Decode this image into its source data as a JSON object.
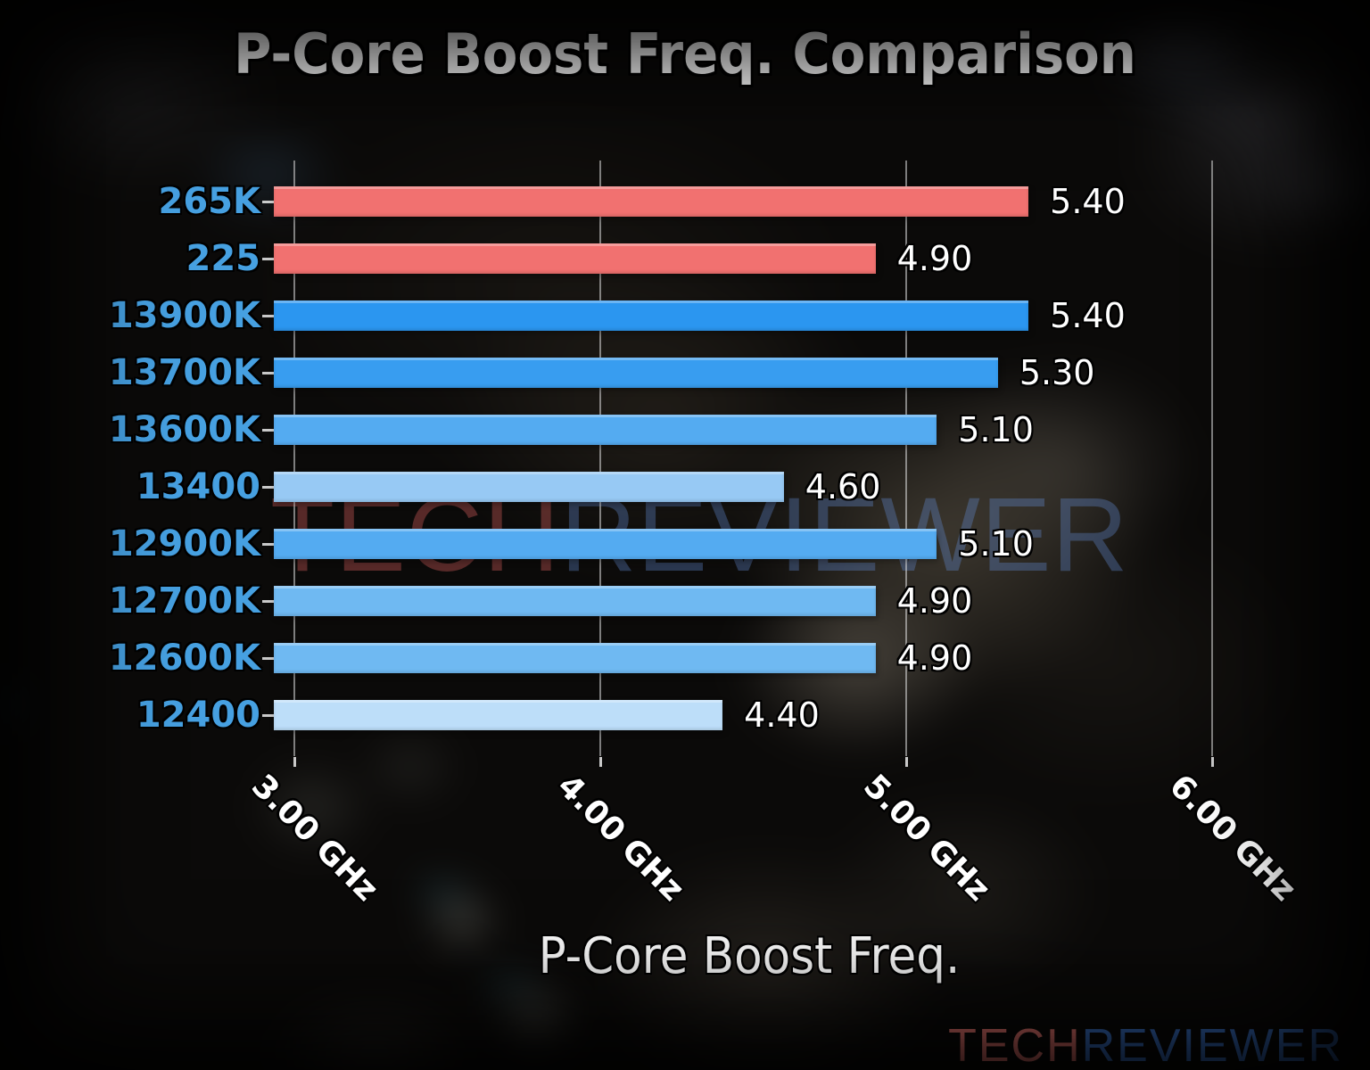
{
  "chart_data": {
    "type": "bar",
    "orientation": "horizontal",
    "title": "P-Core Boost Freq. Comparison",
    "xlabel": "P-Core Boost Freq.",
    "unit": "GHz",
    "categories": [
      "265K",
      "225",
      "13900K",
      "13700K",
      "13600K",
      "13400",
      "12900K",
      "12700K",
      "12600K",
      "12400"
    ],
    "values": [
      5.4,
      4.9,
      5.4,
      5.3,
      5.1,
      4.6,
      5.1,
      4.9,
      4.9,
      4.4
    ],
    "bar_colors": [
      "#f17170",
      "#f17170",
      "#2b96f0",
      "#389df0",
      "#54abf1",
      "#97c9f4",
      "#54abf1",
      "#6fb9f2",
      "#6fb9f2",
      "#bddef9"
    ],
    "category_label_color": "#46a0e1",
    "value_text_color": "#ffffff",
    "tick_text_color": "#ffffff",
    "x_ticks": [
      3,
      4,
      5,
      6
    ],
    "x_tick_labels": [
      "3.00 GHz",
      "4.00 GHz",
      "5.00 GHz",
      "6.00 GHz"
    ],
    "xlim": [
      2.933,
      6.382
    ],
    "grid": true,
    "grid_color": "#dedede",
    "legend": false
  },
  "watermark": {
    "part1": "TECH",
    "part2": "REVIEWER",
    "color1": "rgba(193,86,83,0.42)",
    "color2": "rgba(100,140,215,0.34)"
  },
  "logo": {
    "part1": "TECH",
    "part2": "REVIEWER",
    "color1": "#e5746f",
    "color2": "#3a70c4"
  }
}
